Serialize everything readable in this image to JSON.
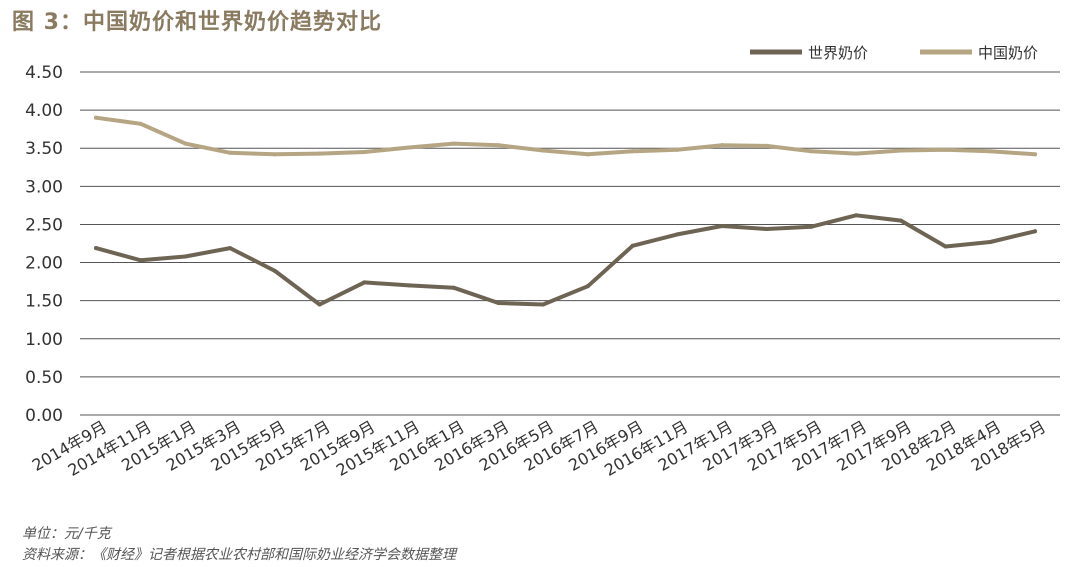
{
  "title": "图 3：中国奶价和世界奶价趋势对比",
  "footer": {
    "unit": "单位：元/千克",
    "source": "资料来源：《财经》记者根据农业农村部和国际奶业经济学会数据整理"
  },
  "colors": {
    "world": "#6e6454",
    "china": "#b5a583",
    "grid": "#555555",
    "title": "#8a7a60"
  },
  "chart_data": {
    "type": "line",
    "title": "图 3：中国奶价和世界奶价趋势对比",
    "xlabel": "",
    "ylabel": "",
    "ylim": [
      0,
      4.5
    ],
    "yticks": [
      "0.00",
      "0.50",
      "1.00",
      "1.50",
      "2.00",
      "2.50",
      "3.00",
      "3.50",
      "4.00",
      "4.50"
    ],
    "grid": "horizontal",
    "legend_position": "top-right",
    "categories": [
      "2014年9月",
      "2014年11月",
      "2015年1月",
      "2015年3月",
      "2015年5月",
      "2015年7月",
      "2015年9月",
      "2015年11月",
      "2016年1月",
      "2016年3月",
      "2016年5月",
      "2016年7月",
      "2016年9月",
      "2016年11月",
      "2017年1月",
      "2017年3月",
      "2017年5月",
      "2017年7月",
      "2017年9月",
      "2018年2月",
      "2018年4月",
      "2018年5月"
    ],
    "series": [
      {
        "name": "世界奶价",
        "color": "#6e6454",
        "values": [
          2.19,
          2.03,
          2.08,
          2.19,
          1.89,
          1.45,
          1.74,
          1.7,
          1.67,
          1.47,
          1.45,
          1.69,
          2.22,
          2.37,
          2.48,
          2.44,
          2.47,
          2.62,
          2.55,
          2.21,
          2.27,
          2.41
        ]
      },
      {
        "name": "中国奶价",
        "color": "#b5a583",
        "values": [
          3.9,
          3.82,
          3.56,
          3.44,
          3.42,
          3.43,
          3.45,
          3.51,
          3.56,
          3.54,
          3.47,
          3.42,
          3.46,
          3.48,
          3.54,
          3.53,
          3.46,
          3.43,
          3.47,
          3.48,
          3.46,
          3.42
        ]
      }
    ]
  }
}
